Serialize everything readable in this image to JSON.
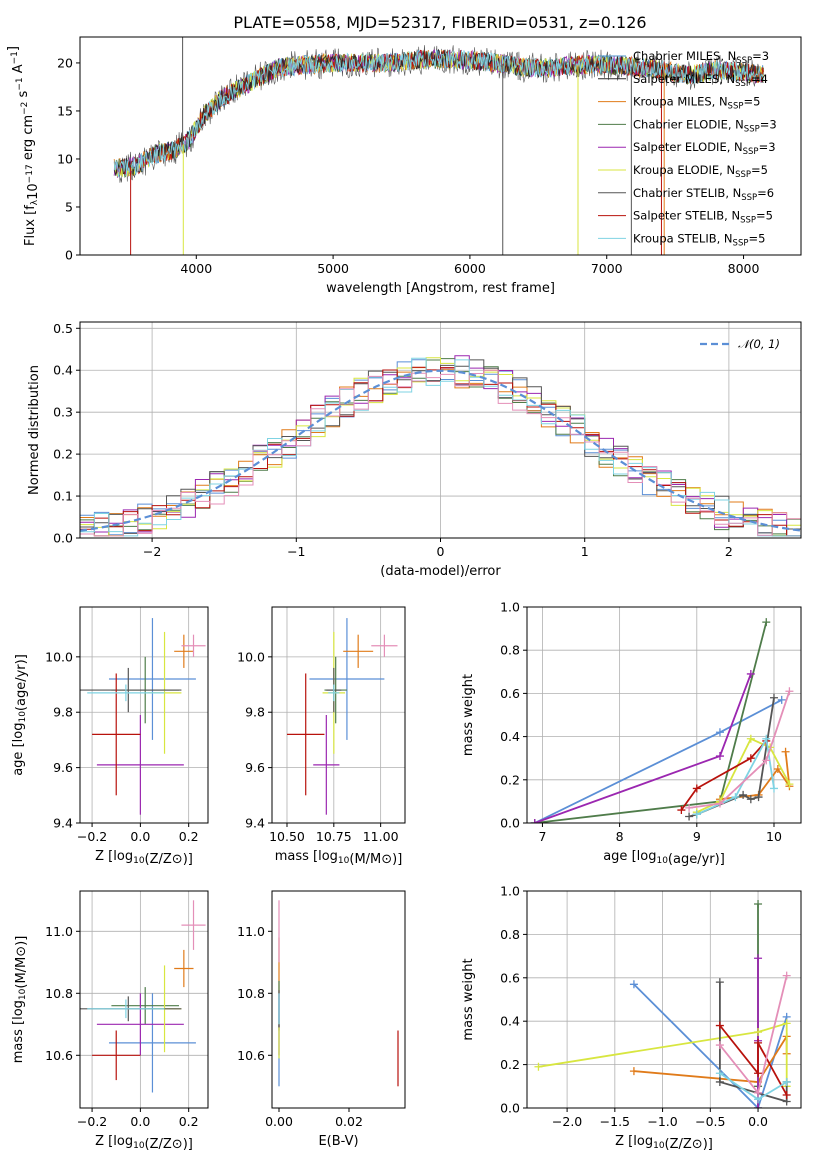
{
  "figure_title": "PLATE=0558, MJD=52317, FIBERID=0531, z=0.126",
  "chart_data": [
    {
      "id": "spectrum",
      "type": "line",
      "xlabel": "wavelength [Angstrom, rest frame]",
      "ylabel": "Flux [f_λ10^-17 erg cm^-2 s^-1 A^-1]",
      "xlim": [
        3150,
        8420
      ],
      "ylim": [
        0,
        22.7
      ],
      "xticks": [
        4000,
        5000,
        6000,
        7000,
        8000
      ],
      "yticks": [
        0,
        5,
        10,
        15,
        20
      ],
      "grid": false,
      "legend_position": "top-right",
      "series": [
        {
          "name": "Chabrier MILES, N_SSP=3",
          "color": "#4a90c8"
        },
        {
          "name": "Salpeter MILES, N_SSP=4",
          "color": "#2a2a2a"
        },
        {
          "name": "Kroupa MILES, N_SSP=5",
          "color": "#e07b1a"
        },
        {
          "name": "Chabrier ELODIE, N_SSP=3",
          "color": "#4f7c4a"
        },
        {
          "name": "Salpeter ELODIE, N_SSP=3",
          "color": "#9b27b0"
        },
        {
          "name": "Kroupa ELODIE, N_SSP=5",
          "color": "#d8e640"
        },
        {
          "name": "Chabrier STELIB, N_SSP=6",
          "color": "#555555"
        },
        {
          "name": "Salpeter STELIB, N_SSP=5",
          "color": "#b8120c"
        },
        {
          "name": "Kroupa STELIB, N_SSP=5",
          "color": "#7fd3e3"
        }
      ],
      "continuum": {
        "x": [
          3400,
          3550,
          3700,
          3850,
          3950,
          4050,
          4200,
          4400,
          4600,
          4800,
          5000,
          5200,
          5400,
          5600,
          5800,
          6000,
          6200,
          6400,
          6600,
          6800,
          7000,
          7200,
          7400,
          7600,
          7800,
          8000,
          8150
        ],
        "y": [
          9.0,
          9.2,
          10.5,
          11.0,
          12.0,
          14.5,
          16.5,
          18.0,
          19.5,
          19.8,
          20.0,
          20.0,
          20.0,
          20.3,
          20.4,
          20.3,
          20.0,
          19.5,
          19.5,
          19.8,
          19.8,
          19.6,
          19.3,
          18.7,
          19.3,
          19.0,
          18.8
        ]
      }
    },
    {
      "id": "residuals",
      "type": "step",
      "xlabel": "(data-model)/error",
      "ylabel": "Normed distribution",
      "xlim": [
        -2.5,
        2.5
      ],
      "ylim": [
        0,
        0.515
      ],
      "xticks": [
        -2,
        -1,
        0,
        1,
        2
      ],
      "yticks": [
        0.0,
        0.1,
        0.2,
        0.3,
        0.4,
        0.5
      ],
      "grid": true,
      "legend_position": "top-right",
      "reference": {
        "name": "𝒩(0, 1)",
        "color": "#5b8fd6",
        "mean": 0,
        "sigma": 1
      },
      "bin_width": 0.1,
      "hist_colors": [
        "#5b8fd6",
        "#e07b1a",
        "#4f7c4a",
        "#9b27b0",
        "#d8e640",
        "#555555",
        "#b8120c",
        "#7fd3e3",
        "#e48fb8"
      ]
    },
    {
      "id": "age-vs-Z",
      "type": "errorbar",
      "xlabel": "Z [log10(Z/Z⊙)]",
      "ylabel": "age [log10(age/yr)]",
      "xlim": [
        -0.25,
        0.28
      ],
      "ylim": [
        9.4,
        10.18
      ],
      "xticks": [
        -0.2,
        0.0,
        0.2
      ],
      "yticks": [
        9.4,
        9.6,
        9.8,
        10.0
      ],
      "grid": true,
      "points": [
        {
          "x": 0.05,
          "y": 9.92,
          "xerr": 0.18,
          "yerr": 0.22,
          "color": "#5b8fd6"
        },
        {
          "x": 0.18,
          "y": 10.02,
          "xerr": 0.04,
          "yerr": 0.06,
          "color": "#e07b1a"
        },
        {
          "x": 0.02,
          "y": 9.88,
          "xerr": 0.14,
          "yerr": 0.12,
          "color": "#4f7c4a"
        },
        {
          "x": 0.0,
          "y": 9.61,
          "xerr": 0.18,
          "yerr": 0.18,
          "color": "#9b27b0"
        },
        {
          "x": 0.1,
          "y": 9.87,
          "xerr": 0.07,
          "yerr": 0.22,
          "color": "#d8e640"
        },
        {
          "x": -0.05,
          "y": 9.88,
          "xerr": 0.22,
          "yerr": 0.08,
          "color": "#555555"
        },
        {
          "x": -0.1,
          "y": 9.72,
          "xerr": 0.1,
          "yerr": 0.22,
          "color": "#b8120c"
        },
        {
          "x": -0.06,
          "y": 9.87,
          "xerr": 0.16,
          "yerr": 0.03,
          "color": "#7fd3e3"
        },
        {
          "x": 0.22,
          "y": 10.04,
          "xerr": 0.05,
          "yerr": 0.04,
          "color": "#e48fb8"
        }
      ]
    },
    {
      "id": "age-vs-mass",
      "type": "errorbar",
      "xlabel": "mass [log10(M/M⊙)]",
      "ylabel": "",
      "xlim": [
        10.42,
        11.13
      ],
      "ylim": [
        9.4,
        10.18
      ],
      "xticks": [
        10.5,
        10.75,
        11.0
      ],
      "yticks": [
        9.4,
        9.6,
        9.8,
        10.0
      ],
      "grid": true,
      "points": [
        {
          "x": 10.82,
          "y": 9.92,
          "xerr": 0.2,
          "yerr": 0.22,
          "color": "#5b8fd6"
        },
        {
          "x": 10.88,
          "y": 10.02,
          "xerr": 0.08,
          "yerr": 0.06,
          "color": "#e07b1a"
        },
        {
          "x": 10.76,
          "y": 9.88,
          "xerr": 0.06,
          "yerr": 0.12,
          "color": "#4f7c4a"
        },
        {
          "x": 10.71,
          "y": 9.61,
          "xerr": 0.07,
          "yerr": 0.18,
          "color": "#9b27b0"
        },
        {
          "x": 10.75,
          "y": 9.87,
          "xerr": 0.06,
          "yerr": 0.22,
          "color": "#d8e640"
        },
        {
          "x": 10.75,
          "y": 9.88,
          "xerr": 0.04,
          "yerr": 0.08,
          "color": "#555555"
        },
        {
          "x": 10.6,
          "y": 9.72,
          "xerr": 0.1,
          "yerr": 0.22,
          "color": "#b8120c"
        },
        {
          "x": 10.75,
          "y": 9.87,
          "xerr": 0.03,
          "yerr": 0.03,
          "color": "#7fd3e3"
        },
        {
          "x": 11.02,
          "y": 10.04,
          "xerr": 0.07,
          "yerr": 0.04,
          "color": "#e48fb8"
        }
      ]
    },
    {
      "id": "mass-weight-vs-age",
      "type": "line",
      "xlabel": "age [log10(age/yr)]",
      "ylabel": "mass weight",
      "xlim": [
        6.8,
        10.35
      ],
      "ylim": [
        0.0,
        1.0
      ],
      "xticks": [
        7,
        8,
        9,
        10
      ],
      "yticks": [
        0.0,
        0.2,
        0.4,
        0.6,
        0.8,
        1.0
      ],
      "grid": true,
      "series": [
        {
          "color": "#5b8fd6",
          "x": [
            6.9,
            9.3,
            10.1
          ],
          "y": [
            0.0,
            0.42,
            0.57
          ]
        },
        {
          "color": "#e07b1a",
          "x": [
            9.3,
            9.8,
            10.05,
            10.2,
            10.15
          ],
          "y": [
            0.11,
            0.13,
            0.25,
            0.17,
            0.33
          ]
        },
        {
          "color": "#4f7c4a",
          "x": [
            6.9,
            9.3,
            9.9
          ],
          "y": [
            0.0,
            0.1,
            0.93
          ]
        },
        {
          "color": "#9b27b0",
          "x": [
            6.9,
            9.3,
            9.7
          ],
          "y": [
            0.0,
            0.31,
            0.69
          ]
        },
        {
          "color": "#d8e640",
          "x": [
            9.0,
            9.3,
            9.7,
            9.95,
            10.2
          ],
          "y": [
            0.05,
            0.1,
            0.39,
            0.35,
            0.18
          ]
        },
        {
          "color": "#555555",
          "x": [
            8.9,
            9.0,
            9.6,
            9.7,
            9.8,
            10.0
          ],
          "y": [
            0.03,
            0.04,
            0.13,
            0.11,
            0.12,
            0.58
          ]
        },
        {
          "color": "#b8120c",
          "x": [
            8.8,
            9.0,
            9.7,
            9.9
          ],
          "y": [
            0.06,
            0.16,
            0.3,
            0.38
          ]
        },
        {
          "color": "#7fd3e3",
          "x": [
            9.0,
            9.5,
            9.9,
            10.0
          ],
          "y": [
            0.04,
            0.12,
            0.39,
            0.16
          ]
        },
        {
          "color": "#e48fb8",
          "x": [
            8.9,
            9.3,
            9.9,
            10.2
          ],
          "y": [
            0.07,
            0.09,
            0.29,
            0.61
          ]
        }
      ]
    },
    {
      "id": "mass-vs-Z",
      "type": "errorbar",
      "xlabel": "Z [log10(Z/Z⊙)]",
      "ylabel": "mass [log10(M/M⊙)]",
      "xlim": [
        -0.25,
        0.28
      ],
      "ylim": [
        10.43,
        11.13
      ],
      "xticks": [
        -0.2,
        0.0,
        0.2
      ],
      "yticks": [
        10.6,
        10.8,
        11.0
      ],
      "grid": true,
      "points": [
        {
          "x": 0.05,
          "y": 10.64,
          "xerr": 0.18,
          "yerr": 0.16,
          "color": "#5b8fd6"
        },
        {
          "x": 0.18,
          "y": 10.88,
          "xerr": 0.04,
          "yerr": 0.06,
          "color": "#e07b1a"
        },
        {
          "x": 0.02,
          "y": 10.76,
          "xerr": 0.14,
          "yerr": 0.06,
          "color": "#4f7c4a"
        },
        {
          "x": 0.0,
          "y": 10.7,
          "xerr": 0.18,
          "yerr": 0.1,
          "color": "#9b27b0"
        },
        {
          "x": 0.1,
          "y": 10.75,
          "xerr": 0.07,
          "yerr": 0.14,
          "color": "#d8e640"
        },
        {
          "x": -0.05,
          "y": 10.75,
          "xerr": 0.22,
          "yerr": 0.04,
          "color": "#555555"
        },
        {
          "x": -0.1,
          "y": 10.6,
          "xerr": 0.1,
          "yerr": 0.08,
          "color": "#b8120c"
        },
        {
          "x": -0.06,
          "y": 10.75,
          "xerr": 0.16,
          "yerr": 0.03,
          "color": "#7fd3e3"
        },
        {
          "x": 0.22,
          "y": 11.02,
          "xerr": 0.05,
          "yerr": 0.08,
          "color": "#e48fb8"
        }
      ]
    },
    {
      "id": "mass-vs-ebv",
      "type": "errorbar",
      "xlabel": "E(B-V)",
      "ylabel": "",
      "xlim": [
        -0.002,
        0.036
      ],
      "ylim": [
        10.43,
        11.13
      ],
      "xticks": [
        0.0,
        0.02
      ],
      "yticks": [
        10.6,
        10.8,
        11.0
      ],
      "grid": false,
      "points": [
        {
          "x": 0.0,
          "y": 10.64,
          "xerr": 0,
          "yerr": 0.14,
          "color": "#5b8fd6"
        },
        {
          "x": 0.0,
          "y": 10.88,
          "xerr": 0,
          "yerr": 0.1,
          "color": "#e07b1a"
        },
        {
          "x": 0.0,
          "y": 10.76,
          "xerr": 0,
          "yerr": 0.08,
          "color": "#4f7c4a"
        },
        {
          "x": 0.0,
          "y": 10.7,
          "xerr": 0,
          "yerr": 0.1,
          "color": "#9b27b0"
        },
        {
          "x": 0.0,
          "y": 10.65,
          "xerr": 0,
          "yerr": 0.06,
          "color": "#d8e640"
        },
        {
          "x": 0.0,
          "y": 10.75,
          "xerr": 0,
          "yerr": 0.06,
          "color": "#555555"
        },
        {
          "x": 0.034,
          "y": 10.59,
          "xerr": 0,
          "yerr": 0.09,
          "color": "#b8120c"
        },
        {
          "x": 0.0,
          "y": 10.75,
          "xerr": 0,
          "yerr": 0.05,
          "color": "#7fd3e3"
        },
        {
          "x": 0.0,
          "y": 11.0,
          "xerr": 0,
          "yerr": 0.1,
          "color": "#e48fb8"
        }
      ]
    },
    {
      "id": "mass-weight-vs-Z",
      "type": "line",
      "xlabel": "Z [log10(Z/Z⊙)]",
      "ylabel": "mass weight",
      "xlim": [
        -2.42,
        0.45
      ],
      "ylim": [
        0.0,
        1.0
      ],
      "xticks": [
        -2.0,
        -1.5,
        -1.0,
        -0.5,
        0.0
      ],
      "yticks": [
        0.0,
        0.2,
        0.4,
        0.6,
        0.8,
        1.0
      ],
      "grid": true,
      "series": [
        {
          "color": "#5b8fd6",
          "x": [
            -1.3,
            0.0,
            0.3
          ],
          "y": [
            0.57,
            0.0,
            0.42
          ]
        },
        {
          "color": "#e07b1a",
          "x": [
            -1.3,
            0.0,
            0.3,
            0.3
          ],
          "y": [
            0.17,
            0.12,
            0.33,
            0.25
          ]
        },
        {
          "color": "#4f7c4a",
          "x": [
            0.0,
            0.0,
            0.0
          ],
          "y": [
            0.0,
            0.1,
            0.94
          ]
        },
        {
          "color": "#9b27b0",
          "x": [
            0.0,
            0.0,
            0.0
          ],
          "y": [
            0.0,
            0.31,
            0.69
          ]
        },
        {
          "color": "#d8e640",
          "x": [
            -2.3,
            0.0,
            0.3,
            0.3
          ],
          "y": [
            0.19,
            0.35,
            0.39,
            0.1
          ]
        },
        {
          "color": "#555555",
          "x": [
            -0.4,
            -0.4,
            0.3,
            0.3
          ],
          "y": [
            0.58,
            0.12,
            0.03,
            0.12
          ]
        },
        {
          "color": "#b8120c",
          "x": [
            -0.4,
            0.0,
            0.0,
            0.3
          ],
          "y": [
            0.38,
            0.16,
            0.3,
            0.06
          ]
        },
        {
          "color": "#7fd3e3",
          "x": [
            -0.4,
            0.0,
            0.3
          ],
          "y": [
            0.16,
            0.04,
            0.12
          ]
        },
        {
          "color": "#e48fb8",
          "x": [
            -0.4,
            0.0,
            0.3
          ],
          "y": [
            0.29,
            0.07,
            0.61
          ]
        }
      ]
    }
  ]
}
